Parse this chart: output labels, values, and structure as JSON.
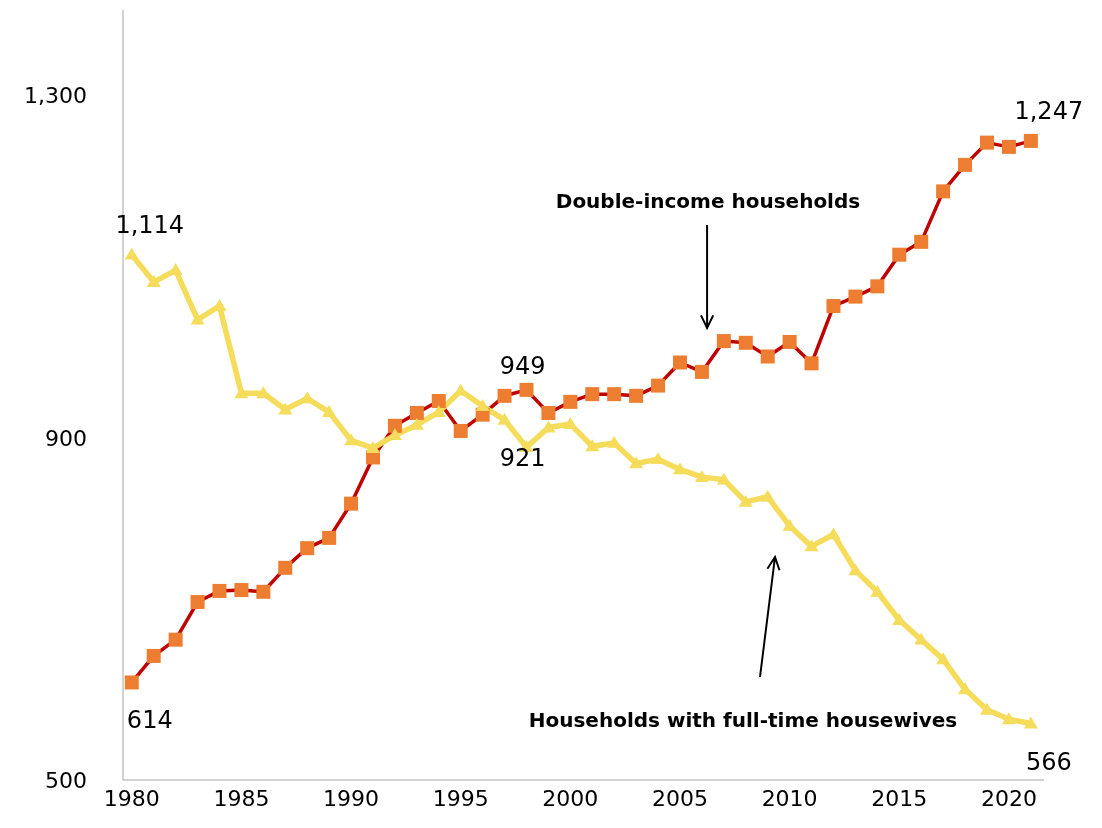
{
  "chart_data": {
    "type": "line",
    "x": [
      1980,
      1981,
      1982,
      1983,
      1984,
      1985,
      1986,
      1987,
      1988,
      1989,
      1990,
      1991,
      1992,
      1993,
      1994,
      1995,
      1996,
      1997,
      1998,
      1999,
      2000,
      2001,
      2002,
      2003,
      2004,
      2005,
      2006,
      2007,
      2008,
      2009,
      2010,
      2011,
      2012,
      2013,
      2014,
      2015,
      2016,
      2017,
      2018,
      2019,
      2020,
      2021
    ],
    "series": [
      {
        "color": "#c00000",
        "marker": "square",
        "colors": [
          "#ed7d31",
          "#ed7d31",
          "#ed7d31",
          "#ed7d31",
          "#ed7d31",
          "#ed7d31",
          "#ed7d31",
          "#ed7d31",
          "#ed7d31",
          "#ed7d31",
          "#ed7d31",
          "#ed7d31",
          "#ed7d31",
          "#ed7d31",
          "#ed7d31",
          "#ed7d31",
          "#ed7d31",
          "#ed7d31",
          "#ed7d31",
          "#ed7d31",
          "#ed7d31",
          "#ed7d31",
          "#ed7d31",
          "#ed7d31",
          "#ed7d31",
          "#ed7d31",
          "#ed7d31",
          "#ed7d31",
          "#ed7d31",
          "#ed7d31",
          "#ed7d31",
          "#ed7d31",
          "#ed7d31",
          "#ed7d31",
          "#ed7d31",
          "#ed7d31",
          "#ed7d31",
          "#ed7d31",
          "#ed7d31",
          "#ed7d31",
          "#ed7d31",
          "#ed7d31"
        ],
        "values": [
          614,
          645,
          664,
          708,
          721,
          722,
          720,
          748,
          771,
          783,
          823,
          877,
          914,
          929,
          943,
          908,
          927,
          949,
          956,
          929,
          942,
          951,
          951,
          949,
          961,
          988,
          977,
          1013,
          1011,
          995,
          1012,
          987,
          1054,
          1065,
          1077,
          1114,
          1129,
          1188,
          1219,
          1245,
          1240,
          1247
        ],
        "value_labels": [
          "614",
          null,
          null,
          null,
          null,
          null,
          null,
          null,
          null,
          null,
          null,
          null,
          null,
          null,
          null,
          null,
          null,
          "949",
          null,
          null,
          null,
          null,
          null,
          null,
          null,
          null,
          null,
          null,
          null,
          null,
          null,
          null,
          null,
          null,
          null,
          null,
          null,
          null,
          null,
          null,
          null,
          "1,247"
        ]
      },
      {
        "color": "#f5dc5a",
        "marker": "triangle",
        "values": [
          1114,
          1082,
          1096,
          1038,
          1054,
          952,
          952,
          933,
          946,
          930,
          897,
          888,
          903,
          915,
          930,
          955,
          937,
          921,
          889,
          912,
          916,
          890,
          894,
          870,
          875,
          863,
          854,
          851,
          825,
          831,
          797,
          773,
          787,
          745,
          720,
          687,
          664,
          641,
          606,
          582,
          571,
          566
        ],
        "value_labels": [
          "1,114",
          null,
          null,
          null,
          null,
          null,
          null,
          null,
          null,
          null,
          null,
          null,
          null,
          null,
          null,
          null,
          null,
          "921",
          null,
          null,
          null,
          null,
          null,
          null,
          null,
          null,
          null,
          null,
          null,
          null,
          null,
          null,
          null,
          null,
          null,
          null,
          null,
          null,
          null,
          null,
          null,
          "566"
        ]
      }
    ],
    "xlim": [
      1979.6,
      2021.6
    ],
    "xticks": [
      1980,
      1985,
      1990,
      1995,
      2000,
      2005,
      2010,
      2015,
      2020
    ],
    "ylim": [
      500,
      1400
    ],
    "yticks": [
      500,
      {
        "value": 900,
        "label": "900"
      },
      {
        "value": 1300,
        "label": "1,300"
      }
    ],
    "grid": false,
    "legend": false,
    "line_style": "solid",
    "annotations": [
      "Double-income households",
      "Households with full-time housewives"
    ]
  }
}
